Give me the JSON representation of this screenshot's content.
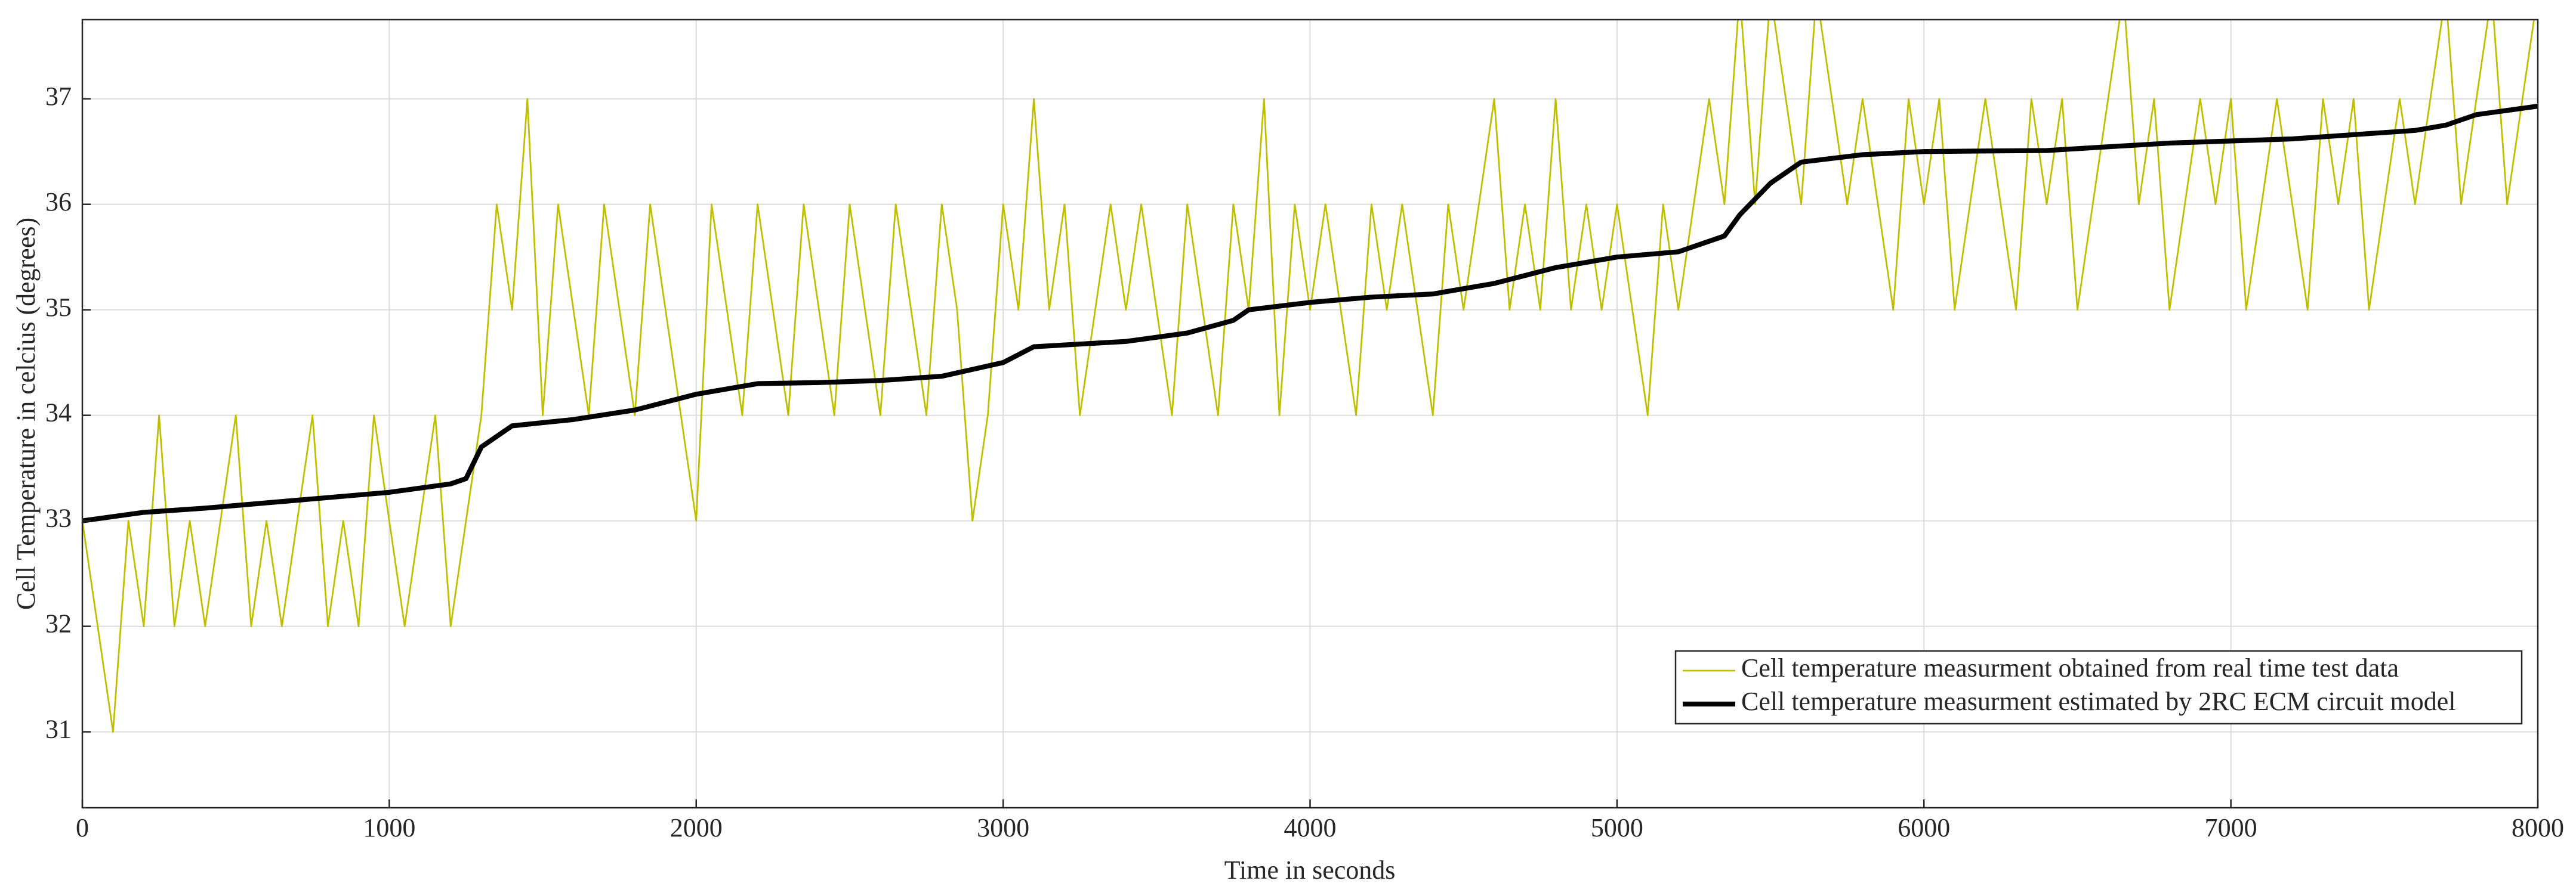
{
  "chart_data": {
    "type": "line",
    "xlabel": "Time in seconds",
    "ylabel": "Cell Temperature in celcius (degrees)",
    "xlim": [
      0,
      8000
    ],
    "ylim": [
      30.28,
      37.75
    ],
    "xticks": [
      0,
      1000,
      2000,
      3000,
      4000,
      5000,
      6000,
      7000,
      8000
    ],
    "yticks": [
      31,
      32,
      33,
      34,
      35,
      36,
      37
    ],
    "grid": true,
    "legend": "lower right",
    "series": [
      {
        "name": "Cell temperature measurment obtained from real time test data",
        "color": "#bfbf00",
        "width": 1,
        "x": [
          0,
          50,
          100,
          150,
          200,
          250,
          300,
          350,
          400,
          450,
          500,
          550,
          600,
          650,
          700,
          750,
          800,
          850,
          900,
          950,
          1000,
          1050,
          1100,
          1150,
          1200,
          1250,
          1300,
          1350,
          1400,
          1450,
          1500,
          1550,
          1600,
          1650,
          1700,
          1750,
          1800,
          1850,
          1900,
          1950,
          2000,
          2050,
          2100,
          2150,
          2200,
          2250,
          2300,
          2350,
          2400,
          2450,
          2500,
          2550,
          2600,
          2650,
          2700,
          2750,
          2800,
          2850,
          2900,
          2950,
          3000,
          3050,
          3100,
          3150,
          3200,
          3250,
          3300,
          3350,
          3400,
          3450,
          3500,
          3550,
          3600,
          3650,
          3700,
          3750,
          3800,
          3850,
          3900,
          3950,
          4000,
          4050,
          4100,
          4150,
          4200,
          4250,
          4300,
          4350,
          4400,
          4450,
          4500,
          4550,
          4600,
          4650,
          4700,
          4750,
          4800,
          4850,
          4900,
          4950,
          5000,
          5050,
          5100,
          5150,
          5200,
          5250,
          5300,
          5350,
          5400,
          5450,
          5500,
          5550,
          5600,
          5650,
          5700,
          5750,
          5800,
          5850,
          5900,
          5950,
          6000,
          6050,
          6100,
          6150,
          6200,
          6250,
          6300,
          6350,
          6400,
          6450,
          6500,
          6550,
          6600,
          6650,
          6700,
          6750,
          6800,
          6850,
          6900,
          6950,
          7000,
          7050,
          7100,
          7150,
          7200,
          7250,
          7300,
          7350,
          7400,
          7450,
          7500,
          7550,
          7600,
          7650,
          7700,
          7750,
          7800,
          7850,
          7900,
          7950,
          8000
        ],
        "values": [
          33,
          32,
          31,
          33,
          32,
          34,
          32,
          33,
          32,
          33,
          34,
          32,
          33,
          32,
          33,
          34,
          32,
          33,
          32,
          34,
          33,
          32,
          33,
          34,
          32,
          33,
          34,
          36,
          35,
          37,
          34,
          36,
          35,
          34,
          36,
          35,
          34,
          36,
          35,
          34,
          33,
          36,
          35,
          34,
          36,
          35,
          34,
          36,
          35,
          34,
          36,
          35,
          34,
          36,
          35,
          34,
          36,
          35,
          33,
          34,
          36,
          35,
          37,
          35,
          36,
          34,
          35,
          36,
          35,
          36,
          35,
          34,
          36,
          35,
          34,
          36,
          35,
          37,
          34,
          36,
          35,
          36,
          35,
          34,
          36,
          35,
          36,
          35,
          34,
          36,
          35,
          36,
          37,
          35,
          36,
          35,
          37,
          35,
          36,
          35,
          36,
          35,
          34,
          36,
          35,
          36,
          37,
          36,
          38,
          36,
          38,
          37,
          36,
          38,
          37,
          36,
          37,
          36,
          35,
          37,
          36,
          37,
          35,
          36,
          37,
          36,
          35,
          37,
          36,
          37,
          35,
          36,
          37,
          38,
          36,
          37,
          35,
          36,
          37,
          36,
          37,
          35,
          36,
          37,
          36,
          35,
          37,
          36,
          37,
          35,
          36,
          37,
          36,
          37,
          38,
          36,
          37,
          38,
          36,
          37,
          38
        ]
      },
      {
        "name": "Cell temperature measurment estimated by 2RC ECM circuit model",
        "color": "#000000",
        "width": 3,
        "x": [
          0,
          200,
          400,
          600,
          800,
          1000,
          1200,
          1250,
          1300,
          1400,
          1600,
          1800,
          2000,
          2200,
          2400,
          2600,
          2800,
          3000,
          3100,
          3400,
          3600,
          3750,
          3800,
          4000,
          4200,
          4400,
          4600,
          4800,
          5000,
          5200,
          5350,
          5400,
          5500,
          5600,
          5800,
          6000,
          6400,
          6800,
          7200,
          7600,
          7700,
          7800,
          8000
        ],
        "values": [
          33,
          33.08,
          33.12,
          33.17,
          33.22,
          33.27,
          33.35,
          33.4,
          33.7,
          33.9,
          33.96,
          34.05,
          34.2,
          34.3,
          34.31,
          34.33,
          34.37,
          34.5,
          34.65,
          34.7,
          34.78,
          34.9,
          35.0,
          35.07,
          35.12,
          35.15,
          35.25,
          35.4,
          35.5,
          35.55,
          35.7,
          35.9,
          36.2,
          36.4,
          36.47,
          36.5,
          36.51,
          36.58,
          36.62,
          36.7,
          36.75,
          36.85,
          36.93
        ]
      }
    ]
  }
}
